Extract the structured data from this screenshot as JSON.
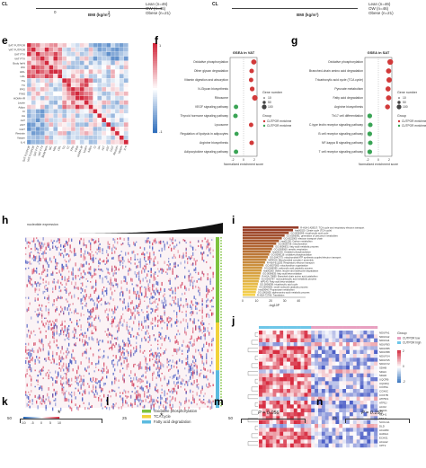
{
  "top_strip": {
    "left_axis": "BMI (kg/m²)",
    "left_ticks": [
      "0",
      "1"
    ],
    "left_cl": "CL",
    "legend_left": [
      "Lean (n=46)",
      "OW (n=46)",
      "Obese (n=21)"
    ],
    "right_axis": "BMI (kg/m²)",
    "right_cl": "CL",
    "legend_right": [
      "Lean (n=46)",
      "OW (n=46)",
      "Obese (n=21)"
    ]
  },
  "panel_labels": {
    "e": "e",
    "f": "f",
    "g": "g",
    "h": "h",
    "i": "i",
    "j": "j",
    "k": "k",
    "l": "l",
    "m": "m",
    "n": "n"
  },
  "heatmap_e": {
    "row_labels": [
      "SAT FUTPOR",
      "VAT FUTPOR",
      "SAT FTV",
      "VAT FTV",
      "Body fat%",
      "WC",
      "HDL",
      "LDL",
      "TG",
      "TC",
      "FPG",
      "FINS",
      "HOMA-IR",
      "Leptin",
      "Adipo",
      "Cr",
      "UA",
      "ALT",
      "AST",
      "GGT",
      "Resistin",
      "Vaspin",
      "IL-6"
    ],
    "col_labels": [
      "SAT FUTPOR",
      "VAT FUTPOR",
      "SAT FTV",
      "VAT FTV",
      "Body fat%",
      "WC",
      "HDL",
      "LDL",
      "TG",
      "TC",
      "FPG",
      "FINS",
      "HOMA-IR",
      "Leptin",
      "Adipo",
      "Cr",
      "UA",
      "ALT",
      "AST",
      "GGT",
      "Resistin",
      "Vaspin",
      "IL-6"
    ],
    "scale_max": "1",
    "scale_min": "-1"
  },
  "panel_f": {
    "title": "GSEA in VAT",
    "terms": [
      "Oxidative phosphorylation",
      "Other glycan degradation",
      "Vitamin digestion and absorption",
      "N-Glycan biosynthesis",
      "Ribosome",
      "VEGF signaling pathway",
      "Thyroid hormone signaling pathway",
      "Lysosome",
      "Regulation of lipolysis in adipocytes",
      "Arginine biosynthesis",
      "Adipocytokine signaling pathway"
    ],
    "nes": [
      1.9,
      1.5,
      1.4,
      1.6,
      2.1,
      -1.4,
      -1.5,
      1.4,
      -1.3,
      1.5,
      -1.4
    ],
    "gene_number_title": "Gene number",
    "gene_numbers": [
      "10",
      "50",
      "100"
    ],
    "group_title": "Group",
    "groups": [
      "CUTPOR enrichment",
      "CUTPOR enrichment"
    ],
    "xlabel": "Normalized enrichment score",
    "ticks": [
      "-2",
      "0",
      "2"
    ]
  },
  "panel_g": {
    "title": "GSEA in SAT",
    "terms": [
      "Oxidative phosphorylation",
      "Branched-chain amino acid degradation",
      "Tricarboxylic acid cycle (TCA cycle)",
      "Pyruvate metabolism",
      "Fatty acid degradation",
      "Arginine biosynthesis",
      "Th17 cell differentiation",
      "C-type lectin receptor signaling pathway",
      "B cell receptor signaling pathway",
      "NF-kappa B signaling pathway",
      "T cell receptor signaling pathway"
    ],
    "nes": [
      2.2,
      1.9,
      2.0,
      1.8,
      1.9,
      1.7,
      -1.6,
      -1.5,
      -1.6,
      -1.5,
      -1.6
    ],
    "gene_number_title": "Gene number",
    "gene_numbers": [
      "10",
      "50",
      "100"
    ],
    "group_title": "Group",
    "groups": [
      "CUTPOR enrichment",
      "CUTPOR enrichment"
    ],
    "xlabel": "Normalized enrichment score",
    "ticks": [
      "-2",
      "0",
      "2"
    ]
  },
  "panel_h": {
    "title": "nucleotide expression",
    "legend": [
      "Oxidative phosphorylation",
      "TCA cycle",
      "Fatty acid degradation"
    ],
    "legend_colors": [
      "#7dc23f",
      "#f1d23a",
      "#5bbbe0"
    ],
    "scale_ticks": [
      "-10",
      "-5",
      "0",
      "5",
      "10"
    ]
  },
  "panel_i": {
    "terms": [
      "R-HSA-1428517: TCA cycle and respiratory electron transport",
      "hsa00020: Citrate cycle (TCA cycle)",
      "GO:0006099: tricarboxylic acid cycle",
      "GO:0006091: generation of precursor metabolites",
      "GO:0022900: electron transport chain",
      "hsa01200: Carbon metabolism",
      "GO:0005739: mitochondrion",
      "GO:0006631: fatty acid metabolic process",
      "GO:0009060: aerobic respiration",
      "hsa00190: Oxidative phosphorylation",
      "GO:0006119: oxidative phosphorylation",
      "GO:0042775: mitochondrial ATP synthesis coupled electron transport",
      "WP4324: Mitochondrial complex I assembly",
      "R-HSA-611105: Respiratory electron transport",
      "GO:0007005: mitochondrion organization",
      "GO:0046395: carboxylic acid catabolic process",
      "hsa00280: Valine, leucine and isoleucine degradation",
      "GO:0006635: fatty acid beta-oxidation",
      "R-HSA-70895: Branched-chain amino acid catabolism",
      "GO:0032787: monocarboxylic acid metabolic process",
      "WP143: Fatty acid beta-oxidation",
      "GO:0006099: tricarboxylic acid cycle",
      "GO:0044282: small molecule catabolic process",
      "hsa00640: Propanoate metabolism",
      "GO:1901605: alpha-amino acid metabolic process",
      "R-HSA-72766: Translation"
    ],
    "values": [
      40,
      36,
      33,
      30,
      28,
      26,
      24,
      22,
      21,
      20,
      19,
      18,
      17,
      16,
      15,
      14,
      13.5,
      13,
      12.5,
      12,
      11.5,
      11,
      10.5,
      10,
      9.5,
      9
    ],
    "xlabel": "-log10P",
    "ticks": [
      "0",
      "10",
      "20",
      "30",
      "40"
    ]
  },
  "panel_j": {
    "group_title": "Group",
    "groups": [
      "CUTPOR low",
      "CUTPOR high"
    ],
    "group_colors": [
      "#e8a0c0",
      "#6ec6e8"
    ],
    "genes": [
      "NDUFA1",
      "NDUFA2",
      "NDUFA4",
      "NDUFB3",
      "NDUFB5",
      "NDUFB8",
      "NDUFS4",
      "NDUFS5",
      "NDUFV2",
      "SDHB",
      "SDHC",
      "SDHD",
      "UQCRB",
      "UQCRQ",
      "COX5A",
      "COX6C",
      "COX7B",
      "ATP5F1",
      "ATP5J",
      "ACO2",
      "IDH3A",
      "MDH1",
      "MDH2",
      "SUCLG1",
      "DLD",
      "ACADM",
      "HADHA",
      "ECHS1",
      "ACAA2",
      "CPT2"
    ],
    "scale_ticks": [
      "2",
      "0",
      "-2"
    ]
  },
  "bottom": {
    "k_y": "50",
    "k_star": "*",
    "l_y": "25",
    "l_star": "*",
    "m_y": "50",
    "m_p": "P = 0.056",
    "n_y": "25",
    "n_p": "P = 0.150"
  }
}
